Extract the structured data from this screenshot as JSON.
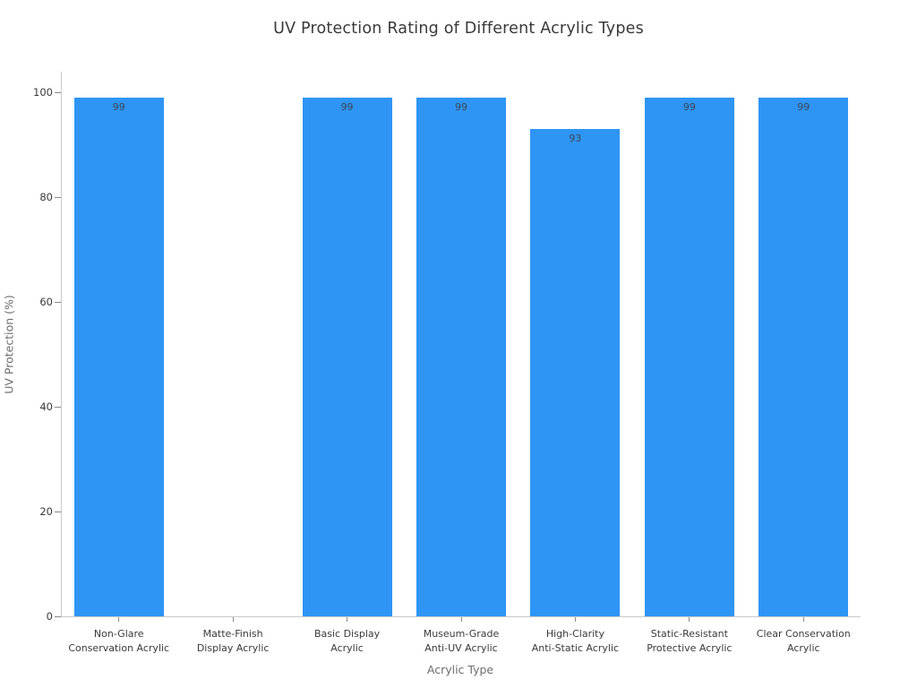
{
  "chart_data": {
    "type": "bar",
    "title": "UV Protection Rating of Different Acrylic Types",
    "xlabel": "Acrylic Type",
    "ylabel": "UV Protection (%)",
    "categories": [
      "Non-Glare\nConservation Acrylic",
      "Matte-Finish\nDisplay Acrylic",
      "Basic Display\nAcrylic",
      "Museum-Grade\nAnti-UV Acrylic",
      "High-Clarity\nAnti-Static Acrylic",
      "Static-Resistant\nProtective Acrylic",
      "Clear Conservation\nAcrylic"
    ],
    "values": [
      99,
      0,
      99,
      99,
      93,
      99,
      99
    ],
    "bar_value_labels": [
      "99",
      "",
      "99",
      "99",
      "93",
      "99",
      "99"
    ],
    "yticks": [
      0,
      20,
      40,
      60,
      80,
      100
    ],
    "ylim": [
      0,
      100
    ],
    "grid": false,
    "legend": false,
    "bar_color": "#2e95f5",
    "value_label_color": "#3d4753"
  }
}
